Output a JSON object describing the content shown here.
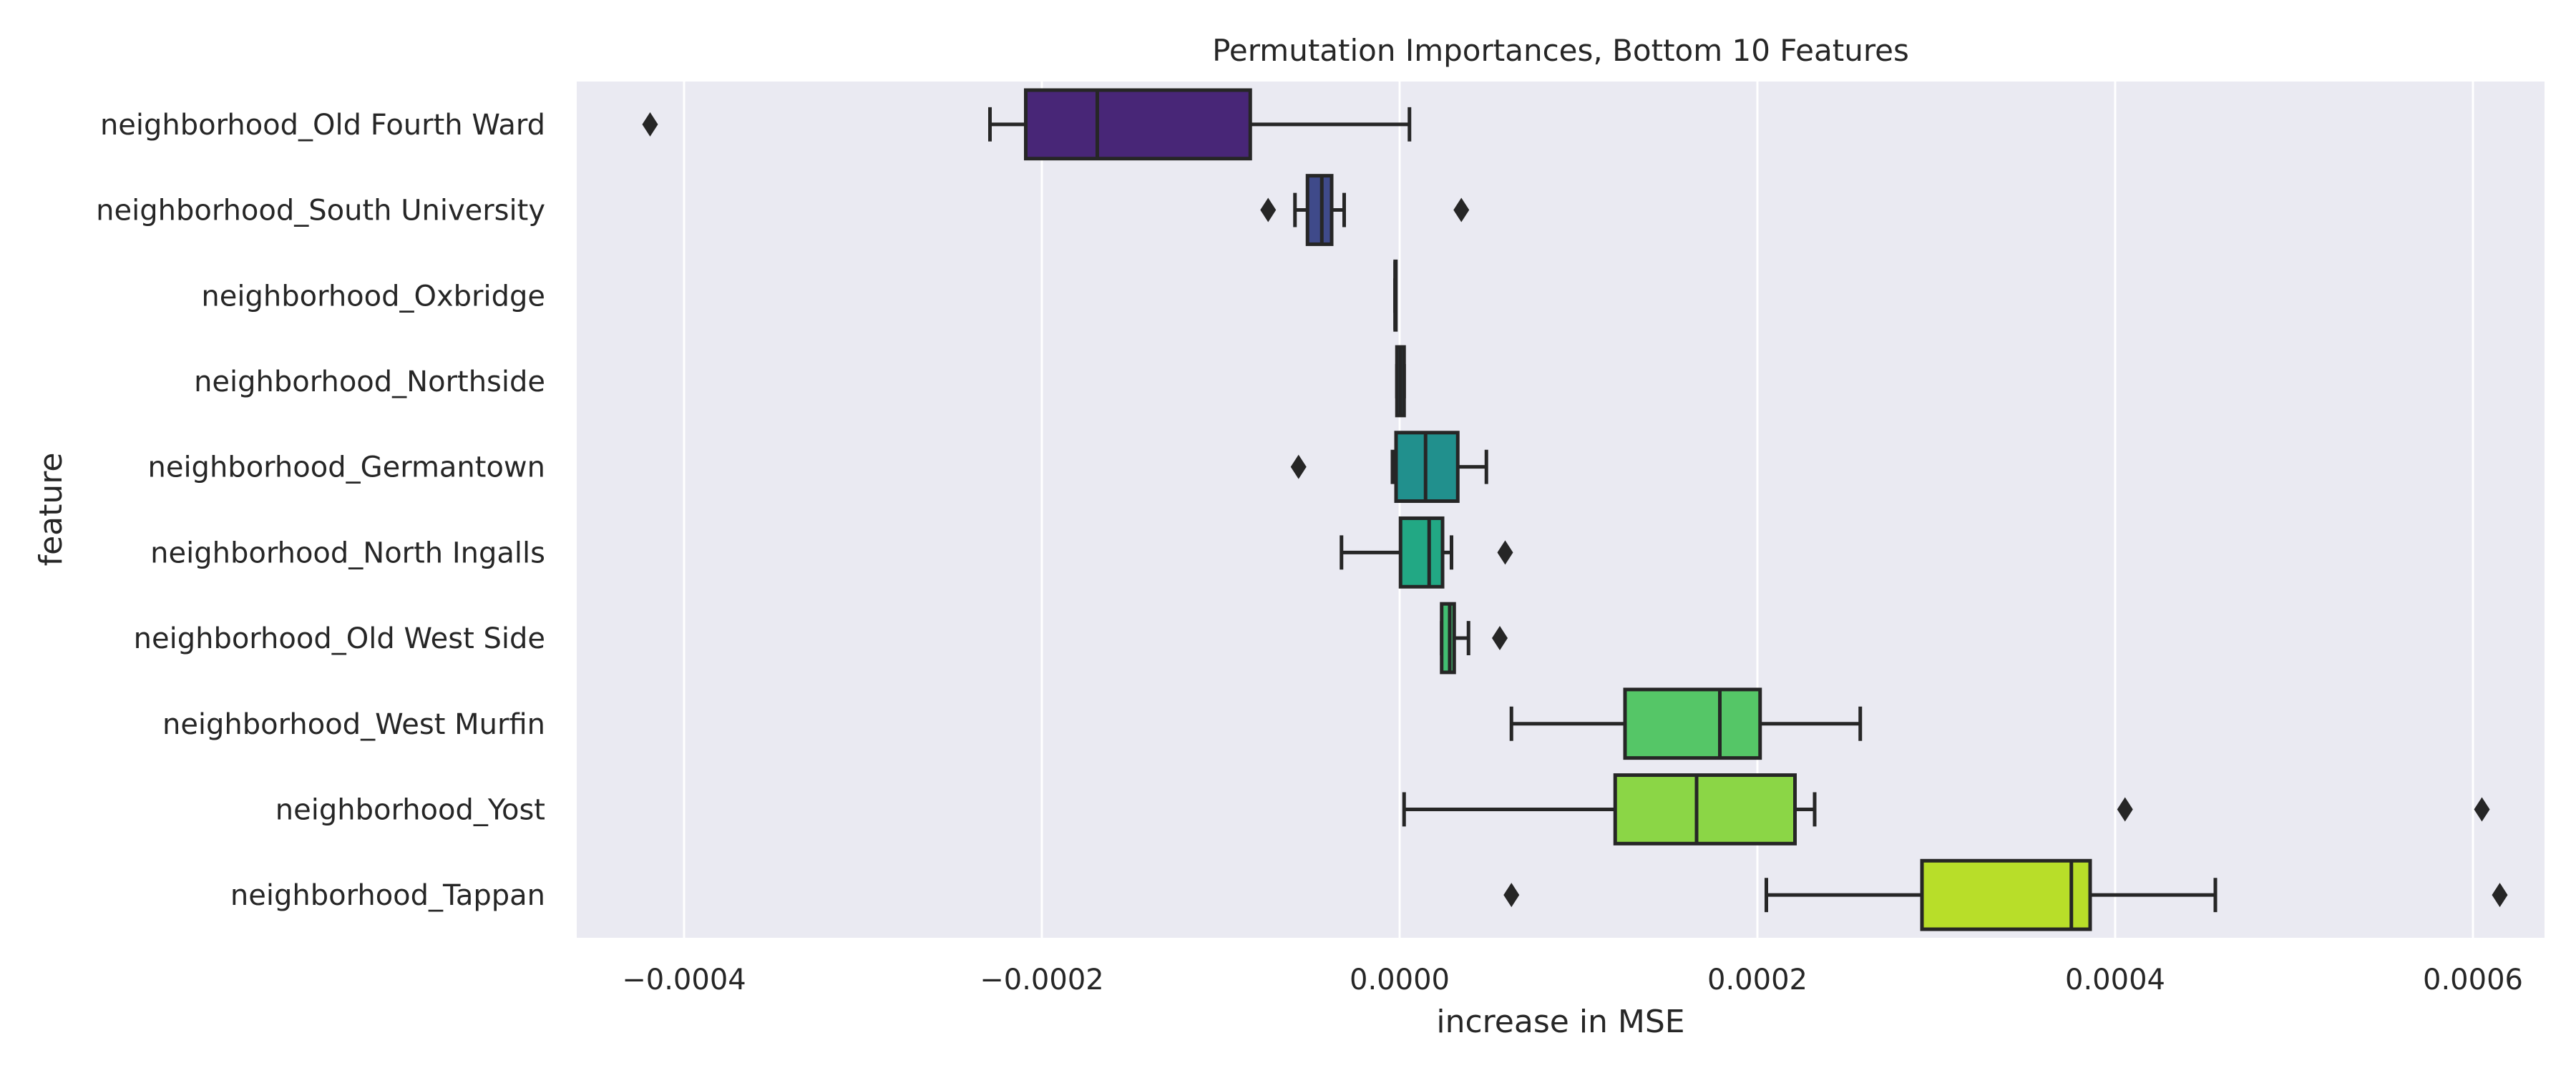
{
  "chart_data": {
    "type": "boxplot",
    "title": "Permutation Importances, Bottom 10 Features",
    "xlabel": "increase in MSE",
    "ylabel": "feature",
    "xlim": [
      -0.00046,
      0.00064
    ],
    "xticks": [
      -0.0004,
      -0.0002,
      0.0,
      0.0002,
      0.0004,
      0.0006
    ],
    "xtick_labels": [
      "−0.0004",
      "−0.0002",
      "0.0000",
      "0.0002",
      "0.0004",
      "0.0006"
    ],
    "grid": true,
    "background": "#eaeaf2",
    "categories": [
      "neighborhood_Old Fourth Ward",
      "neighborhood_South University",
      "neighborhood_Oxbridge",
      "neighborhood_Northside",
      "neighborhood_Germantown",
      "neighborhood_North Ingalls",
      "neighborhood_Old West Side",
      "neighborhood_West Murfin",
      "neighborhood_Yost",
      "neighborhood_Tappan"
    ],
    "boxes": [
      {
        "whisker_low": -0.000229,
        "q1": -0.000209,
        "median": -0.000169,
        "q3": -8.35e-05,
        "whisker_high": 5.5e-06,
        "outliers": [
          -0.000419
        ],
        "color": "#482677"
      },
      {
        "whisker_low": -5.85e-05,
        "q1": -5.15e-05,
        "median": -4.35e-05,
        "q3": -3.8e-05,
        "whisker_high": -3.1e-05,
        "outliers": [
          -7.35e-05,
          3.45e-05
        ],
        "color": "#3f4a8a"
      },
      {
        "whisker_low": -2.5e-06,
        "q1": -2.5e-06,
        "median": -2.5e-06,
        "q3": -2.5e-06,
        "whisker_high": -2.5e-06,
        "outliers": [],
        "color": "#31688e"
      },
      {
        "whisker_low": -1.5e-06,
        "q1": -1.5e-06,
        "median": 5e-07,
        "q3": 2.5e-06,
        "whisker_high": 2.5e-06,
        "outliers": [],
        "color": "#2a788e"
      },
      {
        "whisker_low": -4e-06,
        "q1": -2e-06,
        "median": 1.45e-05,
        "q3": 3.25e-05,
        "whisker_high": 4.85e-05,
        "outliers": [
          -5.65e-05
        ],
        "color": "#21908d"
      },
      {
        "whisker_low": -3.25e-05,
        "q1": 5e-07,
        "median": 1.65e-05,
        "q3": 2.4e-05,
        "whisker_high": 2.9e-05,
        "outliers": [
          5.9e-05
        ],
        "color": "#22a884"
      },
      {
        "whisker_low": 2.35e-05,
        "q1": 2.35e-05,
        "median": 2.8e-05,
        "q3": 3.05e-05,
        "whisker_high": 3.85e-05,
        "outliers": [
          5.6e-05
        ],
        "color": "#42be71"
      },
      {
        "whisker_low": 6.25e-05,
        "q1": 0.000126,
        "median": 0.000179,
        "q3": 0.0002015,
        "whisker_high": 0.0002575,
        "outliers": [],
        "color": "#55c667"
      },
      {
        "whisker_low": 2.5e-06,
        "q1": 0.0001205,
        "median": 0.000166,
        "q3": 0.000221,
        "whisker_high": 0.000232,
        "outliers": [
          0.0004055,
          0.000605
        ],
        "color": "#8bd646"
      },
      {
        "whisker_low": 0.000205,
        "q1": 0.000292,
        "median": 0.0003755,
        "q3": 0.000386,
        "whisker_high": 0.000456,
        "outliers": [
          6.25e-05,
          0.000615
        ],
        "color": "#b8de29"
      }
    ]
  }
}
